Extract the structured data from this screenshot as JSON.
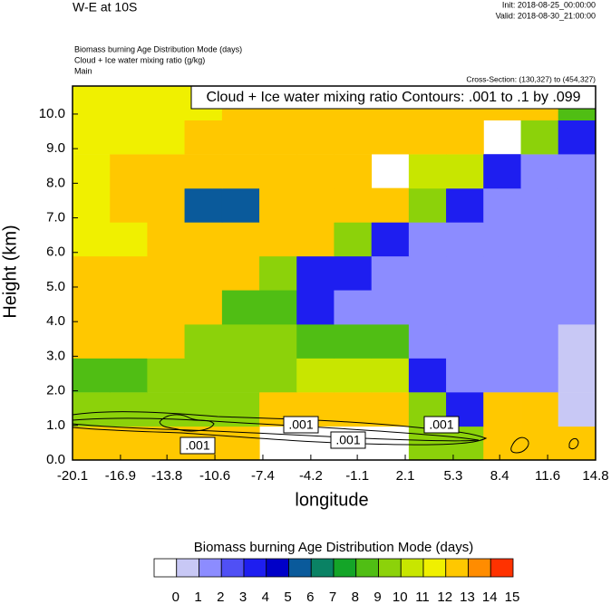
{
  "chart_data": {
    "type": "heatmap",
    "title": "W-E at 10S",
    "init": "Init: 2018-08-25_00:00:00",
    "valid": "Valid: 2018-08-30_21:00:00",
    "field_titles": [
      "Biomass burning Age Distribution Mode   (days)",
      "Cloud + Ice water mixing ratio   (g/kg)",
      "Main"
    ],
    "cross_section": "Cross-Section: (130,327) to (454,327)",
    "contour_title": "Cloud + Ice water mixing ratio Contours: .001 to .1 by .099",
    "contour_labels": [
      ".001",
      ".001",
      ".001",
      ".001"
    ],
    "x_label": "longitude",
    "y_label": "Height (km)",
    "xlim": [
      -20.1,
      14.8
    ],
    "ylim": [
      0,
      10.81
    ],
    "xticks": [
      -20.1,
      -16.9,
      -13.8,
      -10.6,
      -7.4,
      -4.2,
      -1.1,
      2.1,
      5.3,
      8.4,
      11.6,
      14.8
    ],
    "yticks": [
      {
        "value": 0,
        "label": "0.0"
      },
      {
        "value": 1,
        "label": "1.0"
      },
      {
        "value": 2,
        "label": "2.0"
      },
      {
        "value": 3,
        "label": "3.0"
      },
      {
        "value": 4,
        "label": "4.0"
      },
      {
        "value": 5,
        "label": "5.0"
      },
      {
        "value": 6,
        "label": "6.0"
      },
      {
        "value": 7,
        "label": "7.0"
      },
      {
        "value": 8,
        "label": "8.0"
      },
      {
        "value": 9,
        "label": "9.0"
      },
      {
        "value": 10,
        "label": "10.0"
      }
    ],
    "x": [
      -18.85,
      -16.36,
      -13.87,
      -11.38,
      -8.88,
      -6.39,
      -3.9,
      -1.41,
      1.09,
      3.58,
      6.07,
      8.56,
      11.06,
      13.55
    ],
    "y": [
      0.49,
      1.47,
      2.46,
      3.44,
      4.42,
      5.41,
      6.39,
      7.37,
      8.35,
      9.34,
      10.32
    ],
    "z": [
      [
        12.5,
        12.5,
        12.5,
        12.5,
        12.5,
        null,
        null,
        null,
        null,
        9.5,
        9.5,
        12.5,
        12.5,
        12.5
      ],
      [
        9.5,
        9.5,
        9.5,
        9.5,
        9.5,
        12.5,
        12.5,
        12.5,
        12.5,
        9.5,
        3.5,
        12.5,
        12.5,
        0.5
      ],
      [
        8.5,
        8.5,
        9.5,
        9.5,
        9.5,
        9.5,
        10.5,
        10.5,
        10.5,
        3.5,
        1.5,
        1.5,
        1.5,
        0.5
      ],
      [
        12.5,
        12.5,
        12.5,
        9.5,
        9.5,
        9.5,
        8.5,
        8.5,
        8.5,
        1.5,
        1.5,
        1.5,
        1.5,
        0.5
      ],
      [
        12.5,
        12.5,
        12.5,
        12.5,
        8.5,
        8.5,
        3.5,
        1.5,
        1.5,
        1.5,
        1.5,
        1.5,
        1.5,
        1.5
      ],
      [
        12.5,
        12.5,
        12.5,
        12.5,
        12.5,
        9.5,
        3.5,
        3.5,
        1.5,
        1.5,
        1.5,
        1.5,
        1.5,
        1.5
      ],
      [
        11.5,
        11.5,
        12.5,
        12.5,
        12.5,
        12.5,
        12.5,
        9.5,
        3.5,
        1.5,
        1.5,
        1.5,
        1.5,
        1.5
      ],
      [
        11.5,
        12.5,
        12.5,
        5.5,
        5.5,
        12.5,
        12.5,
        12.5,
        12.5,
        9.5,
        3.5,
        1.5,
        1.5,
        1.5
      ],
      [
        11.5,
        12.5,
        12.5,
        12.5,
        12.5,
        12.5,
        12.5,
        12.5,
        null,
        10.5,
        10.5,
        3.5,
        1.5,
        1.5
      ],
      [
        11.5,
        11.5,
        11.5,
        12.5,
        12.5,
        12.5,
        12.5,
        12.5,
        12.5,
        12.5,
        12.5,
        null,
        9.5,
        3.5
      ],
      [
        11.5,
        11.5,
        11.5,
        11.5,
        12.5,
        12.5,
        12.5,
        12.5,
        12.5,
        12.5,
        12.5,
        12.5,
        12.5,
        8.5
      ]
    ],
    "colorbar": {
      "title": "Biomass burning Age Distribution Mode  (days)",
      "levels": [
        0,
        1,
        2,
        3,
        4,
        5,
        6,
        7,
        8,
        9,
        10,
        11,
        12,
        13,
        14,
        15
      ],
      "colors": [
        "#ffffff",
        "#c8c8f5",
        "#8c8cff",
        "#5050f5",
        "#1e1ef0",
        "#0000c8",
        "#0a5a9b",
        "#0a8264",
        "#14a528",
        "#50be14",
        "#8cd20a",
        "#c8e600",
        "#f0f000",
        "#ffc800",
        "#ff8c00",
        "#ff3200"
      ]
    }
  }
}
